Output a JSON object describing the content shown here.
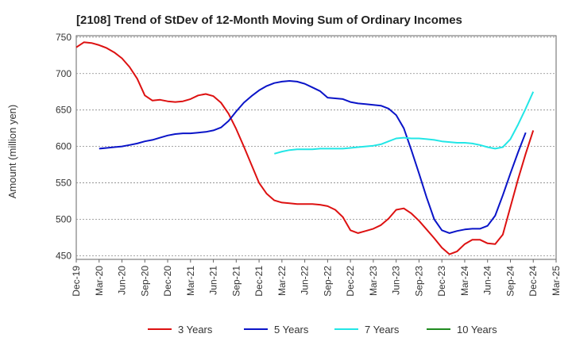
{
  "chart_data": {
    "type": "line",
    "title": "[2108]  Trend of StDev of 12-Month Moving Sum of Ordinary Incomes",
    "xlabel": "",
    "ylabel": "Amount (million yen)",
    "ylim": [
      445,
      752
    ],
    "yticks": [
      450,
      500,
      550,
      600,
      650,
      700,
      750
    ],
    "xlim": [
      0,
      63
    ],
    "xticks": [
      {
        "m": 0,
        "label": "Dec-19"
      },
      {
        "m": 3,
        "label": "Mar-20"
      },
      {
        "m": 6,
        "label": "Jun-20"
      },
      {
        "m": 9,
        "label": "Sep-20"
      },
      {
        "m": 12,
        "label": "Dec-20"
      },
      {
        "m": 15,
        "label": "Mar-21"
      },
      {
        "m": 18,
        "label": "Jun-21"
      },
      {
        "m": 21,
        "label": "Sep-21"
      },
      {
        "m": 24,
        "label": "Dec-21"
      },
      {
        "m": 27,
        "label": "Mar-22"
      },
      {
        "m": 30,
        "label": "Jun-22"
      },
      {
        "m": 33,
        "label": "Sep-22"
      },
      {
        "m": 36,
        "label": "Dec-22"
      },
      {
        "m": 39,
        "label": "Mar-23"
      },
      {
        "m": 42,
        "label": "Jun-23"
      },
      {
        "m": 45,
        "label": "Sep-23"
      },
      {
        "m": 48,
        "label": "Dec-23"
      },
      {
        "m": 51,
        "label": "Mar-24"
      },
      {
        "m": 54,
        "label": "Jun-24"
      },
      {
        "m": 57,
        "label": "Sep-24"
      },
      {
        "m": 60,
        "label": "Dec-24"
      },
      {
        "m": 63,
        "label": "Mar-25"
      }
    ],
    "grid": true,
    "legend_position": "bottom",
    "series": [
      {
        "name": "3 Years",
        "color": "#dd1111",
        "start": 0,
        "values": [
          736,
          743,
          742,
          739,
          735,
          729,
          721,
          709,
          693,
          670,
          663,
          664,
          662,
          661,
          662,
          665,
          670,
          672,
          669,
          660,
          645,
          624,
          600,
          575,
          550,
          535,
          526,
          523,
          522,
          521,
          521,
          521,
          520,
          518,
          513,
          503,
          485,
          481,
          484,
          487,
          492,
          501,
          513,
          515,
          508,
          498,
          486,
          474,
          461,
          452,
          456,
          466,
          472,
          472,
          467,
          466,
          479,
          517,
          555,
          590,
          622
        ]
      },
      {
        "name": "5 Years",
        "color": "#0a14c8",
        "start": 3,
        "values": [
          597,
          598,
          599,
          600,
          602,
          604,
          607,
          609,
          612,
          615,
          617,
          618,
          618,
          619,
          620,
          622,
          626,
          635,
          648,
          660,
          669,
          677,
          683,
          687,
          689,
          690,
          689,
          686,
          681,
          676,
          667,
          666,
          665,
          661,
          659,
          658,
          657,
          656,
          652,
          643,
          625,
          595,
          563,
          530,
          500,
          485,
          481,
          484,
          486,
          487,
          487,
          491,
          505,
          533,
          563,
          592,
          619
        ]
      },
      {
        "name": "7 Years",
        "color": "#22e6e6",
        "start": 26,
        "values": [
          590,
          593,
          595,
          596,
          596,
          596,
          597,
          597,
          597,
          597,
          598,
          599,
          600,
          601,
          603,
          607,
          611,
          612,
          611,
          611,
          610,
          609,
          607,
          606,
          605,
          605,
          604,
          602,
          599,
          597,
          599,
          610,
          630,
          652,
          675
        ]
      },
      {
        "name": "10 Years",
        "color": "#1f8a1f",
        "start": 0,
        "values": []
      }
    ]
  }
}
